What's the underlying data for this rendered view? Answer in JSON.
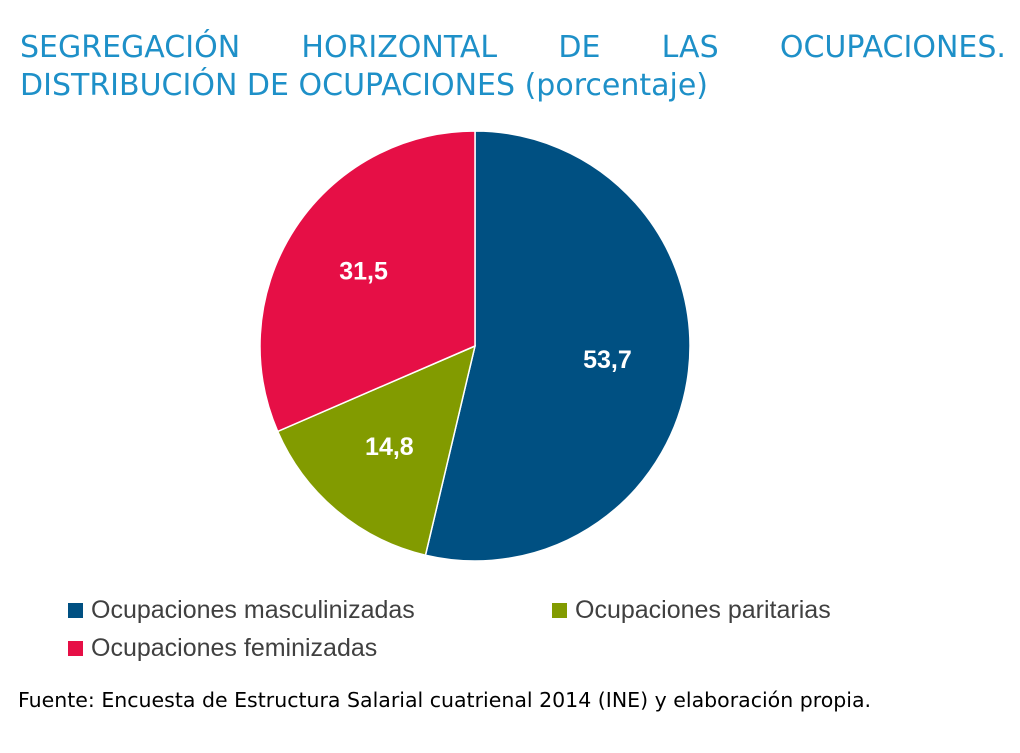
{
  "title_words": [
    "SEGREGACIÓN",
    "HORIZONTAL",
    "DE",
    "LAS",
    "OCUPACIONES."
  ],
  "title_line2": "DISTRIBUCIÓN DE OCUPACIONES (porcentaje)",
  "source": "Fuente: Encuesta de Estructura Salarial cuatrienal 2014 (INE) y elaboración propia.",
  "chart_data": {
    "type": "pie",
    "title": "SEGREGACIÓN HORIZONTAL DE LAS OCUPACIONES. DISTRIBUCIÓN DE OCUPACIONES (porcentaje)",
    "categories": [
      "Ocupaciones masculinizadas",
      "Ocupaciones paritarias",
      "Ocupaciones feminizadas"
    ],
    "values": [
      53.7,
      14.8,
      31.5
    ],
    "labels": [
      "53,7",
      "14,8",
      "31,5"
    ],
    "colors": [
      "#005082",
      "#829b00",
      "#e60f46"
    ],
    "start_angle": "12 o'clock",
    "direction": "clockwise",
    "legend_position": "bottom"
  }
}
